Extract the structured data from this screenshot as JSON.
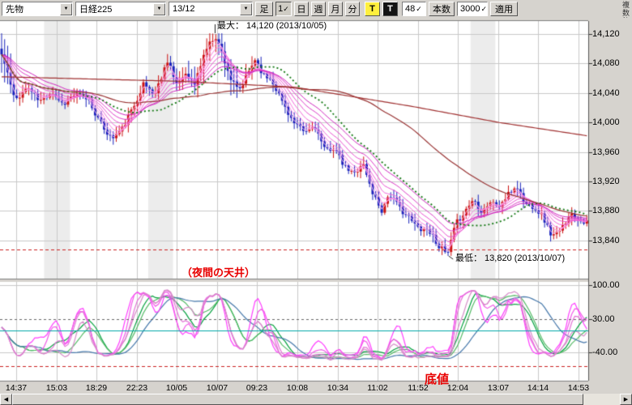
{
  "icons": {
    "dropdown": "▼",
    "check": "✓",
    "left": "◀",
    "right": "▶"
  },
  "toolbar": {
    "instrument": "先物",
    "symbol": "日経225",
    "contract": "13/12",
    "ashi": "足",
    "one": "1",
    "day": "日",
    "week": "週",
    "month": "月",
    "minute": "分",
    "t_yellow": "T",
    "t_black": "T",
    "count_value": "48",
    "count_label": "本数",
    "bars_value": "3000",
    "apply": "適用",
    "multi_label": "複数銘柄"
  },
  "annotations": {
    "max_label": "最大： 14,120 (2013/10/05)",
    "min_label": "最低： 13,820 (2013/10/07)",
    "ceiling_label": "（夜間の天井）",
    "bottom_label": "底値"
  },
  "price_axis": {
    "labels": [
      "14,120",
      "14,080",
      "14,040",
      "14,000",
      "13,960",
      "13,920",
      "13,880",
      "13,840"
    ]
  },
  "osc_axis": {
    "labels": [
      "100.00",
      "30.00",
      "-40.00"
    ]
  },
  "time_axis": {
    "labels": [
      "14:37",
      "15:03",
      "18:29",
      "22:23",
      "10/05",
      "10/07",
      "09:23",
      "10:08",
      "10:34",
      "11:02",
      "11:52",
      "12:04",
      "13:07",
      "14:14",
      "14:53"
    ]
  },
  "chart_data": {
    "type": "candlestick",
    "title": "日経225 先物 13/12 1分足",
    "max_point": {
      "price": 14120,
      "date": "2013/10/05"
    },
    "min_point": {
      "price": 13820,
      "date": "2013/10/07"
    },
    "price_ticks": [
      14120,
      14080,
      14040,
      14000,
      13960,
      13920,
      13880,
      13840
    ],
    "price_ref": 14120,
    "price_scale": 0.91,
    "osc_scale": 0.593,
    "candle_count": 195,
    "seed": 11,
    "up_color": "#cc1111",
    "down_color": "#1822bb",
    "session_bands": [
      [
        0.075,
        0.119
      ],
      [
        0.252,
        0.294
      ],
      [
        0.8,
        0.842
      ]
    ],
    "band_color": "#ececec",
    "main_levels": [
      {
        "value": 13828,
        "color": "#cc2222",
        "dash": [
          4,
          3
        ]
      }
    ],
    "anchors": [
      [
        0.0,
        14092
      ],
      [
        0.01,
        14068
      ],
      [
        0.022,
        14030
      ],
      [
        0.045,
        14048
      ],
      [
        0.065,
        14028
      ],
      [
        0.085,
        14042
      ],
      [
        0.105,
        14025
      ],
      [
        0.125,
        14038
      ],
      [
        0.148,
        14032
      ],
      [
        0.168,
        14000
      ],
      [
        0.188,
        13978
      ],
      [
        0.205,
        13990
      ],
      [
        0.225,
        14020
      ],
      [
        0.242,
        14052
      ],
      [
        0.262,
        14038
      ],
      [
        0.285,
        14088
      ],
      [
        0.298,
        14048
      ],
      [
        0.315,
        14068
      ],
      [
        0.33,
        14052
      ],
      [
        0.348,
        14098
      ],
      [
        0.365,
        14118
      ],
      [
        0.378,
        14092
      ],
      [
        0.392,
        14058
      ],
      [
        0.405,
        14042
      ],
      [
        0.422,
        14068
      ],
      [
        0.433,
        14086
      ],
      [
        0.448,
        14064
      ],
      [
        0.462,
        14058
      ],
      [
        0.48,
        14028
      ],
      [
        0.5,
        13998
      ],
      [
        0.518,
        13986
      ],
      [
        0.535,
        13996
      ],
      [
        0.552,
        13962
      ],
      [
        0.568,
        13966
      ],
      [
        0.585,
        13940
      ],
      [
        0.602,
        13930
      ],
      [
        0.617,
        13946
      ],
      [
        0.632,
        13908
      ],
      [
        0.65,
        13880
      ],
      [
        0.662,
        13904
      ],
      [
        0.676,
        13888
      ],
      [
        0.692,
        13874
      ],
      [
        0.71,
        13858
      ],
      [
        0.73,
        13854
      ],
      [
        0.748,
        13832
      ],
      [
        0.762,
        13820
      ],
      [
        0.776,
        13862
      ],
      [
        0.792,
        13880
      ],
      [
        0.806,
        13896
      ],
      [
        0.82,
        13880
      ],
      [
        0.835,
        13892
      ],
      [
        0.85,
        13886
      ],
      [
        0.866,
        13902
      ],
      [
        0.88,
        13914
      ],
      [
        0.894,
        13890
      ],
      [
        0.91,
        13886
      ],
      [
        0.925,
        13872
      ],
      [
        0.94,
        13846
      ],
      [
        0.955,
        13852
      ],
      [
        0.97,
        13876
      ],
      [
        0.985,
        13870
      ],
      [
        1.0,
        13864
      ]
    ],
    "ma": {
      "ribbon_periods": [
        2,
        4,
        6,
        9,
        13,
        18,
        24
      ],
      "ribbon_colors": [
        "#ffaff0",
        "#ff98ea",
        "#fb80e2",
        "#f369da",
        "#ea52d2",
        "#de3cc9",
        "#d026bf"
      ],
      "dotted_sma": {
        "period": 26,
        "color": "#117711"
      },
      "slow_sma": {
        "period": 70,
        "color": "#993333"
      },
      "long_line_anchors": [
        [
          0,
          14062
        ],
        [
          0.3,
          14056
        ],
        [
          0.5,
          14048
        ],
        [
          0.7,
          14022
        ],
        [
          0.85,
          14000
        ],
        [
          1,
          13982
        ]
      ],
      "long_line_color": "#a03030"
    },
    "oscillator": {
      "magenta_periods": [
        8,
        11,
        15,
        21
      ],
      "magenta_smooth": 3,
      "magenta_colors": [
        "#ff3dff",
        "#f25ae8",
        "#e373d6",
        "#d68cc8"
      ],
      "green_periods": [
        13,
        19
      ],
      "green_smooth": 8,
      "green_colors": [
        "#00a03c",
        "#55bb66"
      ],
      "blue": {
        "period": 30,
        "smooth": 14,
        "color": "#4477aa"
      },
      "map_mul": 1.62,
      "map_sub": 62,
      "grid_values": [
        100,
        -40
      ],
      "levels": [
        {
          "value": 30,
          "color": "#666666",
          "dash": [
            3,
            3
          ]
        },
        {
          "value": 6,
          "color": "#00a8a8",
          "dash": null
        },
        {
          "value": -68,
          "color": "#cc2222",
          "dash": [
            4,
            3
          ]
        }
      ]
    }
  }
}
